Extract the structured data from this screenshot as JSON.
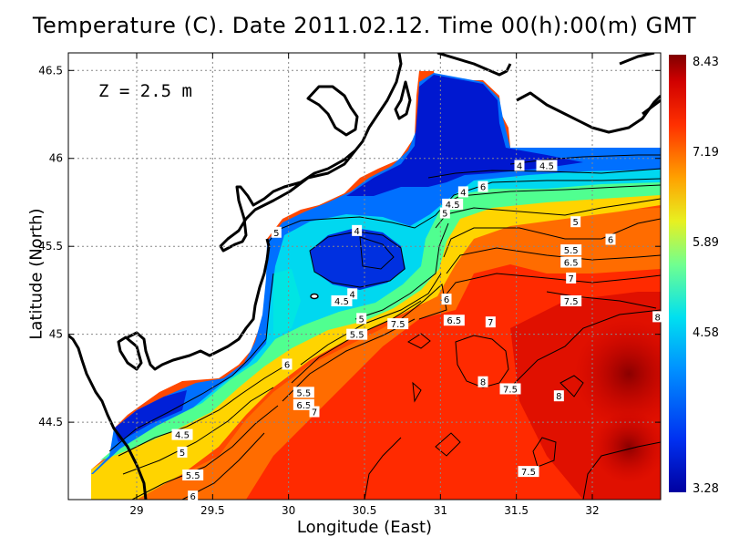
{
  "chart_data": {
    "type": "heatmap",
    "title": "Temperature (C). Date 2011.02.12. Time 00(h):00(m) GMT",
    "xlabel": "Longitude (East)",
    "ylabel": "Latitude (North)",
    "annotation": "Z = 2.5 m",
    "xlim": [
      28.55,
      32.45
    ],
    "ylim": [
      44.06,
      46.6
    ],
    "x_ticks": [
      "29",
      "29.5",
      "30",
      "30.5",
      "31",
      "31.5",
      "32"
    ],
    "y_ticks": [
      "44.5",
      "45",
      "45.5",
      "46",
      "46.5"
    ],
    "grid": true,
    "colorbar": {
      "min": 3.28,
      "max": 8.43,
      "tick_labels": [
        "8.43",
        "7.19",
        "5.89",
        "4.58",
        "3.28"
      ],
      "colors": [
        "#0000a0",
        "#0050ff",
        "#00c8ff",
        "#40ffb0",
        "#c8ff30",
        "#ffd000",
        "#ff6000",
        "#e00000",
        "#800000"
      ]
    },
    "contour_labels": [
      {
        "text": "4",
        "lon": 31.52,
        "lat": 45.96
      },
      {
        "text": "4.5",
        "lon": 31.7,
        "lat": 45.96
      },
      {
        "text": "4",
        "lon": 31.15,
        "lat": 45.81
      },
      {
        "text": "6",
        "lon": 31.28,
        "lat": 45.84
      },
      {
        "text": "4.5",
        "lon": 31.08,
        "lat": 45.74
      },
      {
        "text": "5",
        "lon": 31.03,
        "lat": 45.69
      },
      {
        "text": "5",
        "lon": 29.92,
        "lat": 45.58
      },
      {
        "text": "4",
        "lon": 30.45,
        "lat": 45.59
      },
      {
        "text": "5",
        "lon": 31.89,
        "lat": 45.64
      },
      {
        "text": "6",
        "lon": 32.12,
        "lat": 45.54
      },
      {
        "text": "5.5",
        "lon": 31.86,
        "lat": 45.48
      },
      {
        "text": "6.5",
        "lon": 31.86,
        "lat": 45.41
      },
      {
        "text": "7",
        "lon": 31.86,
        "lat": 45.32
      },
      {
        "text": "4.5",
        "lon": 30.35,
        "lat": 45.19
      },
      {
        "text": "4",
        "lon": 30.42,
        "lat": 45.23
      },
      {
        "text": "6",
        "lon": 31.04,
        "lat": 45.2
      },
      {
        "text": "5",
        "lon": 30.48,
        "lat": 45.09
      },
      {
        "text": "5.5",
        "lon": 30.45,
        "lat": 45.0
      },
      {
        "text": "7.5",
        "lon": 30.72,
        "lat": 45.06
      },
      {
        "text": "6.5",
        "lon": 31.09,
        "lat": 45.08
      },
      {
        "text": "7",
        "lon": 31.33,
        "lat": 45.07
      },
      {
        "text": "7.5",
        "lon": 31.86,
        "lat": 45.19
      },
      {
        "text": "8",
        "lon": 32.43,
        "lat": 45.1
      },
      {
        "text": "6",
        "lon": 29.99,
        "lat": 44.83
      },
      {
        "text": "8",
        "lon": 31.28,
        "lat": 44.73
      },
      {
        "text": "7.5",
        "lon": 31.46,
        "lat": 44.69
      },
      {
        "text": "8",
        "lon": 31.78,
        "lat": 44.65
      },
      {
        "text": "5.5",
        "lon": 30.1,
        "lat": 44.67
      },
      {
        "text": "6.5",
        "lon": 30.1,
        "lat": 44.6
      },
      {
        "text": "7",
        "lon": 30.17,
        "lat": 44.56
      },
      {
        "text": "4.5",
        "lon": 29.3,
        "lat": 44.43
      },
      {
        "text": "5",
        "lon": 29.3,
        "lat": 44.33
      },
      {
        "text": "5.5",
        "lon": 29.37,
        "lat": 44.2
      },
      {
        "text": "6",
        "lon": 29.37,
        "lat": 44.08
      },
      {
        "text": "7.5",
        "lon": 31.58,
        "lat": 44.22
      }
    ]
  }
}
